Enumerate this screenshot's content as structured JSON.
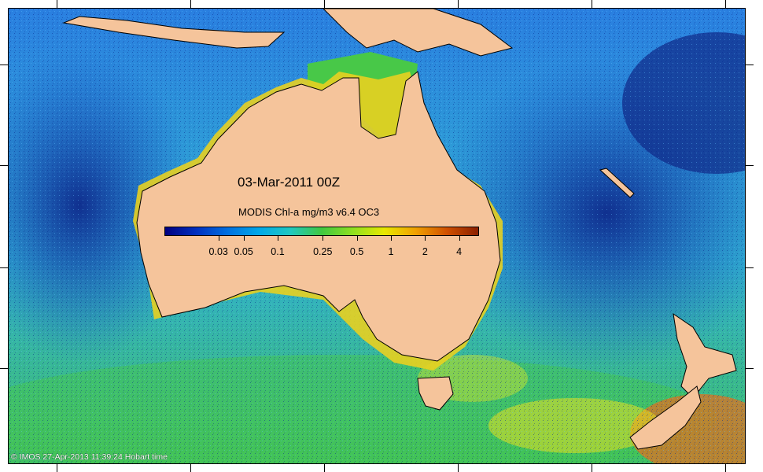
{
  "title": "03-Mar-2011 00Z",
  "colorbar": {
    "title": "MODIS Chl-a mg/m3 v6.4 OC3",
    "ticks": [
      "0.03",
      "0.05",
      "0.1",
      "0.25",
      "0.5",
      "1",
      "2",
      "4"
    ],
    "tick_values": [
      0.03,
      0.05,
      0.1,
      0.25,
      0.5,
      1,
      2,
      4
    ],
    "range": [
      0.01,
      6
    ],
    "scale": "log",
    "colors": [
      "#000080",
      "#0030c0",
      "#0070e0",
      "#00a8e8",
      "#20c8c0",
      "#40c840",
      "#90e020",
      "#e8e800",
      "#f0a000",
      "#d05000",
      "#8b2000"
    ]
  },
  "footer": "© IMOS 27-Apr-2013 11:39:24 Hobart time",
  "map": {
    "land_color": "#f5c49b",
    "ocean_colors": {
      "deep": "#1a3fb0",
      "mid": "#2a7fe0",
      "shelf": "#40c8c0",
      "productive": "#48c848",
      "coastal": "#e8e020",
      "bloom": "#c83010"
    },
    "icons": [
      "australia-landmass",
      "new-zealand-landmass",
      "tasmania-landmass",
      "new-guinea-landmass"
    ]
  }
}
